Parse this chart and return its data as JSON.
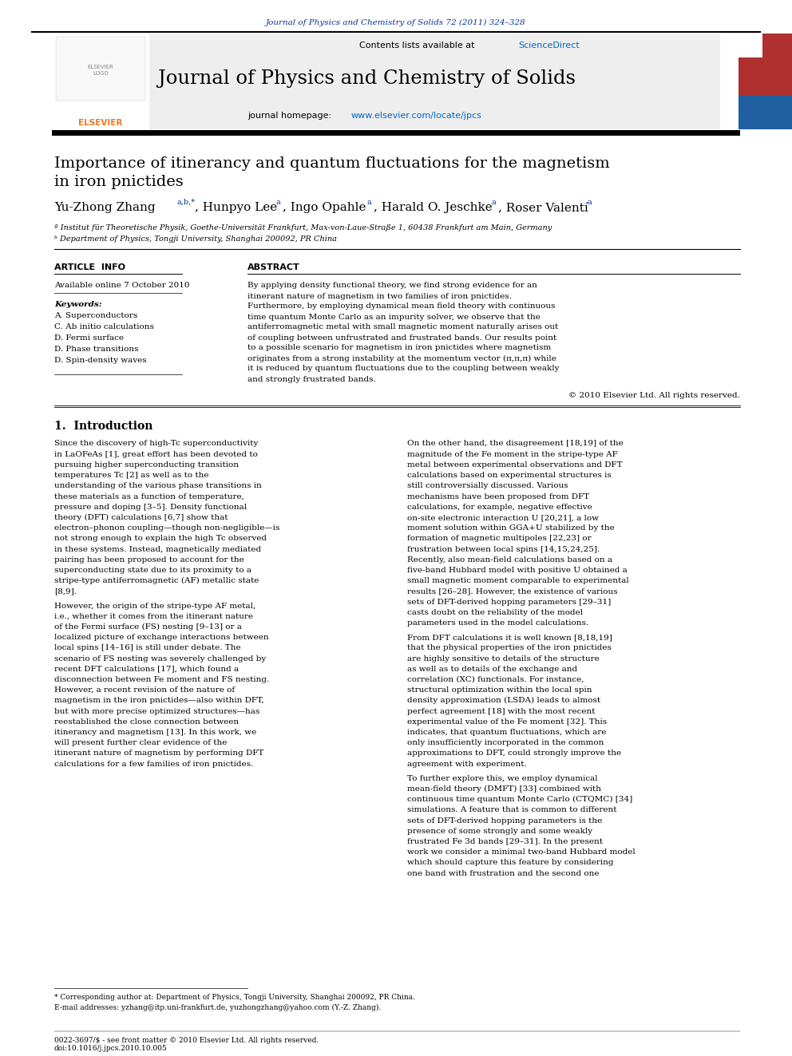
{
  "journal_ref": "Journal of Physics and Chemistry of Solids 72 (2011) 324–328",
  "journal_title": "Journal of Physics and Chemistry of Solids",
  "contents_line": "Contents lists available at ScienceDirect",
  "journal_homepage": "journal homepage: www.elsevier.com/locate/jpcs",
  "paper_title_line1": "Importance of itinerancy and quantum fluctuations for the magnetism",
  "paper_title_line2": "in iron pnictides",
  "affil_a": "ª Institut für Theoretische Physik, Goethe-Universität Frankfurt, Max-von-Laue-Straße 1, 60438 Frankfurt am Main, Germany",
  "affil_b": "ᵇ Department of Physics, Tongji University, Shanghai 200092, PR China",
  "article_info_label": "ARTICLE  INFO",
  "abstract_label": "ABSTRACT",
  "available_online": "Available online 7 October 2010",
  "keywords_label": "Keywords:",
  "keywords": [
    "A. Superconductors",
    "C. Ab initio calculations",
    "D. Fermi surface",
    "D. Phase transitions",
    "D. Spin-density waves"
  ],
  "abstract_text": "By applying density functional theory, we find strong evidence for an itinerant nature of magnetism in two families of iron pnictides. Furthermore, by employing dynamical mean field theory with continuous time quantum Monte Carlo as an impurity solver, we observe that the antiferromagnetic metal with small magnetic moment naturally arises out of coupling between unfrustrated and frustrated bands. Our results point to a possible scenario for magnetism in iron pnictides where magnetism originates from a strong instability at the momentum vector (π,π,π) while it is reduced by quantum fluctuations due to the coupling between weakly and strongly frustrated bands.",
  "copyright": "© 2010 Elsevier Ltd. All rights reserved.",
  "intro_heading": "1.  Introduction",
  "intro_col1": "Since the discovery of high-Tc superconductivity in LaOFeAs [1], great effort has been devoted to pursuing higher superconducting transition temperatures Tc [2] as well as to the understanding of the various phase transitions in these materials as a function of temperature, pressure and doping [3–5]. Density functional theory (DFT) calculations [6,7] show that electron–phonon coupling—though non-negligible—is not strong enough to explain the high Tc observed in these systems. Instead, magnetically mediated pairing has been proposed to account for the superconducting state due to its proximity to a stripe-type antiferromagnetic (AF) metallic state [8,9].\n\nHowever, the origin of the stripe-type AF metal, i.e., whether it comes from the itinerant nature of the Fermi surface (FS) nesting [9–13] or a localized picture of exchange interactions between local spins [14–16] is still under debate. The scenario of FS nesting was severely challenged by recent DFT calculations [17], which found a disconnection between Fe moment and FS nesting. However, a recent revision of the nature of magnetism in the iron pnictides—also within DFT, but with more precise optimized structures—has reestablished the close connection between itinerancy and magnetism [13]. In this work, we will present further clear evidence of the itinerant nature of magnetism by performing DFT calculations for a few families of iron pnictides.",
  "intro_col2": "On the other hand, the disagreement [18,19] of the magnitude of the Fe moment in the stripe-type AF metal between experimental observations and DFT calculations based on experimental structures is still controversially discussed. Various mechanisms have been proposed from DFT calculations, for example, negative effective on-site electronic interaction U [20,21], a low moment solution within GGA+U stabilized by the formation of magnetic multipoles [22,23] or frustration between local spins [14,15,24,25]. Recently, also mean-field calculations based on a five-band Hubbard model with positive U obtained a small magnetic moment comparable to experimental results [26–28]. However, the existence of various sets of DFT-derived hopping parameters [29–31] casts doubt on the reliability of the model parameters used in the model calculations.\n\nFrom DFT calculations it is well known [8,18,19] that the physical properties of the iron pnictides are highly sensitive to details of the structure as well as to details of the exchange and correlation (XC) functionals. For instance, structural optimization within the local spin density approximation (LSDA) leads to almost perfect agreement [18] with the most recent experimental value of the Fe moment [32]. This indicates, that quantum fluctuations, which are only insufficiently incorporated in the common approximations to DFT, could strongly improve the agreement with experiment.\n\nTo further explore this, we employ dynamical mean-field theory (DMFT) [33] combined with continuous time quantum Monte Carlo (CTQMC) [34] simulations. A feature that is common to different sets of DFT-derived hopping parameters is the presence of some strongly and some weakly frustrated Fe 3d bands [29–31]. In the present work we consider a minimal two-band Hubbard model which should capture this feature by considering one band with frustration and the second one",
  "footnote1": "* Corresponding author at: Department of Physics, Tongji University, Shanghai 200092, PR China.",
  "footnote2": "E-mail addresses: yzhang@itp.uni-frankfurt.de, yuzhongzhang@yahoo.com (Y.-Z. Zhang).",
  "doi_line1": "0022-3697/$ - see front matter © 2010 Elsevier Ltd. All rights reserved.",
  "doi_line2": "doi:10.1016/j.jpcs.2010.10.005",
  "blue_color": "#003399",
  "link_color": "#0066cc",
  "orange_color": "#e87722"
}
